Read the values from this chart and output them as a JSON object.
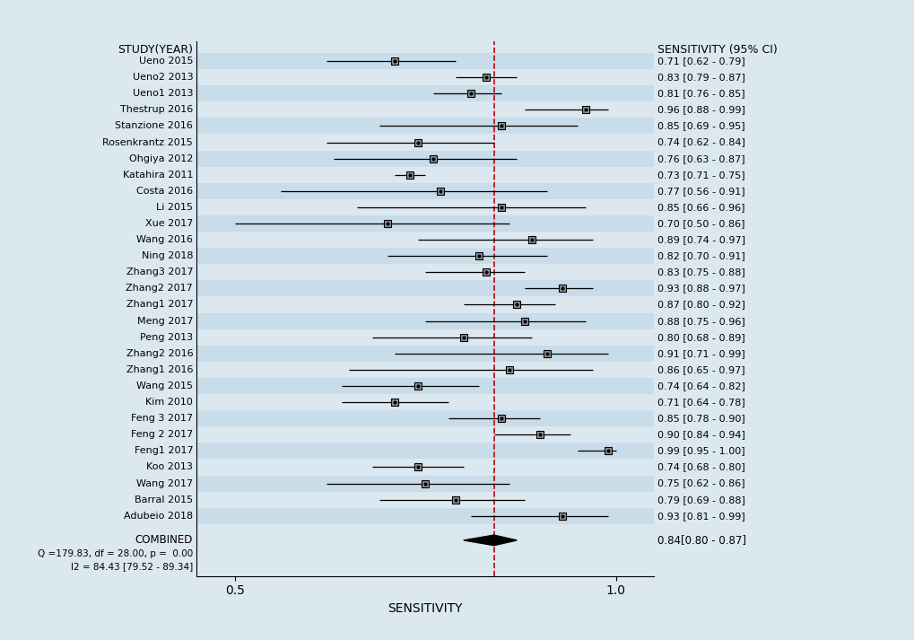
{
  "studies": [
    {
      "name": "Ueno 2015",
      "sens": 0.71,
      "ci_lo": 0.62,
      "ci_hi": 0.79
    },
    {
      "name": "Ueno2 2013",
      "sens": 0.83,
      "ci_lo": 0.79,
      "ci_hi": 0.87
    },
    {
      "name": "Ueno1 2013",
      "sens": 0.81,
      "ci_lo": 0.76,
      "ci_hi": 0.85
    },
    {
      "name": "Thestrup 2016",
      "sens": 0.96,
      "ci_lo": 0.88,
      "ci_hi": 0.99
    },
    {
      "name": "Stanzione 2016",
      "sens": 0.85,
      "ci_lo": 0.69,
      "ci_hi": 0.95
    },
    {
      "name": "Rosenkrantz 2015",
      "sens": 0.74,
      "ci_lo": 0.62,
      "ci_hi": 0.84
    },
    {
      "name": "Ohgiya 2012",
      "sens": 0.76,
      "ci_lo": 0.63,
      "ci_hi": 0.87
    },
    {
      "name": "Katahira 2011",
      "sens": 0.73,
      "ci_lo": 0.71,
      "ci_hi": 0.75
    },
    {
      "name": "Costa 2016",
      "sens": 0.77,
      "ci_lo": 0.56,
      "ci_hi": 0.91
    },
    {
      "name": "Li 2015",
      "sens": 0.85,
      "ci_lo": 0.66,
      "ci_hi": 0.96
    },
    {
      "name": "Xue 2017",
      "sens": 0.7,
      "ci_lo": 0.5,
      "ci_hi": 0.86
    },
    {
      "name": "Wang 2016",
      "sens": 0.89,
      "ci_lo": 0.74,
      "ci_hi": 0.97
    },
    {
      "name": "Ning 2018",
      "sens": 0.82,
      "ci_lo": 0.7,
      "ci_hi": 0.91
    },
    {
      "name": "Zhang3 2017",
      "sens": 0.83,
      "ci_lo": 0.75,
      "ci_hi": 0.88
    },
    {
      "name": "Zhang2 2017",
      "sens": 0.93,
      "ci_lo": 0.88,
      "ci_hi": 0.97
    },
    {
      "name": "Zhang1 2017",
      "sens": 0.87,
      "ci_lo": 0.8,
      "ci_hi": 0.92
    },
    {
      "name": "Meng 2017",
      "sens": 0.88,
      "ci_lo": 0.75,
      "ci_hi": 0.96
    },
    {
      "name": "Peng 2013",
      "sens": 0.8,
      "ci_lo": 0.68,
      "ci_hi": 0.89
    },
    {
      "name": "Zhang2 2016",
      "sens": 0.91,
      "ci_lo": 0.71,
      "ci_hi": 0.99
    },
    {
      "name": "Zhang1 2016",
      "sens": 0.86,
      "ci_lo": 0.65,
      "ci_hi": 0.97
    },
    {
      "name": "Wang 2015",
      "sens": 0.74,
      "ci_lo": 0.64,
      "ci_hi": 0.82
    },
    {
      "name": "Kim 2010",
      "sens": 0.71,
      "ci_lo": 0.64,
      "ci_hi": 0.78
    },
    {
      "name": "Feng 3 2017",
      "sens": 0.85,
      "ci_lo": 0.78,
      "ci_hi": 0.9
    },
    {
      "name": "Feng 2 2017",
      "sens": 0.9,
      "ci_lo": 0.84,
      "ci_hi": 0.94
    },
    {
      "name": "Feng1 2017",
      "sens": 0.99,
      "ci_lo": 0.95,
      "ci_hi": 1.0
    },
    {
      "name": "Koo 2013",
      "sens": 0.74,
      "ci_lo": 0.68,
      "ci_hi": 0.8
    },
    {
      "name": "Wang 2017",
      "sens": 0.75,
      "ci_lo": 0.62,
      "ci_hi": 0.86
    },
    {
      "name": "Barral 2015",
      "sens": 0.79,
      "ci_lo": 0.69,
      "ci_hi": 0.88
    },
    {
      "name": "Adubeio 2018",
      "sens": 0.93,
      "ci_lo": 0.81,
      "ci_hi": 0.99
    }
  ],
  "combined": {
    "sens": 0.84,
    "ci_lo": 0.8,
    "ci_hi": 0.87
  },
  "dashed_line_x": 0.84,
  "xlim": [
    0.45,
    1.05
  ],
  "xticks": [
    0.5,
    1.0
  ],
  "xlabel": "SENSITIVITY",
  "title_left": "STUDY(YEAR)",
  "title_right": "SENSITIVITY (95% CI)",
  "q_text": "Q =179.83, df = 28.00, p =  0.00",
  "i2_text": "I2 = 84.43 [79.52 - 89.34]",
  "combined_label": "COMBINED",
  "bg_color": "#dce8f0",
  "stripe_color_odd": "#c8dcea",
  "stripe_color_even": "#dce8f0",
  "marker_face": "#909090",
  "dashed_color": "#cc0000",
  "diamond_color": "black",
  "text_fontsize": 8.0,
  "header_fontsize": 9.0,
  "ci_fontsize": 8.0,
  "combined_fontsize": 8.5,
  "stats_fontsize": 7.5
}
